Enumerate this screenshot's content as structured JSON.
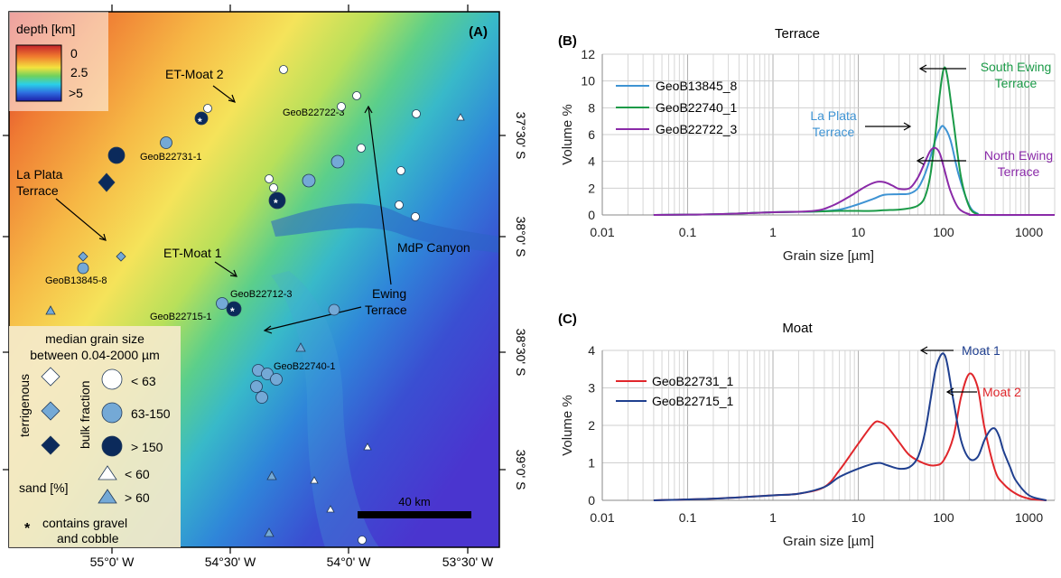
{
  "map": {
    "panel_label": "(A)",
    "colorbar": {
      "title": "depth [km]",
      "ticks": [
        "0",
        "2.5",
        ">5"
      ]
    },
    "lon_labels": [
      "55°0' W",
      "54°30' W",
      "54°0' W",
      "53°30' W"
    ],
    "lat_labels": [
      "37°30' S",
      "38°0' S",
      "38°30' S",
      "39°0' S"
    ],
    "place_labels": {
      "et_moat_2": "ET-Moat 2",
      "et_moat_1": "ET-Moat 1",
      "la_plata_1": "La Plata",
      "la_plata_2": "Terrace",
      "ewing_1": "Ewing",
      "ewing_2": "Terrace",
      "mdp_canyon": "MdP Canyon"
    },
    "sample_labels": {
      "s22722": "GeoB22722-3",
      "s22731": "GeoB22731-1",
      "s13845": "GeoB13845-8",
      "s22712": "GeoB22712-3",
      "s22715": "GeoB22715-1",
      "s22740": "GeoB22740-1"
    },
    "scale_bar": "40 km",
    "legend": {
      "title_1": "median grain size",
      "title_2": "between 0.04-2000 µm",
      "terrigenous": "terrigenous",
      "bulk_fraction": "bulk fraction",
      "lt63": "< 63",
      "r63_150": "63-150",
      "gt150": "> 150",
      "sand": "sand [%]",
      "lt60": "< 60",
      "gt60": "> 60",
      "gravel_1": "contains gravel",
      "gravel_2": "and cobble",
      "asterisk": "*"
    },
    "colors": {
      "white": "#ffffff",
      "light_blue": "#74a9d6",
      "dark_navy": "#0b2a5b"
    }
  },
  "chart_data": [
    {
      "panel_label": "(B)",
      "type": "line",
      "title": "Terrace",
      "xlabel": "Grain size [µm]",
      "ylabel": "Volume %",
      "xscale": "log",
      "xlim": [
        0.01,
        2000
      ],
      "ylim": [
        0,
        12
      ],
      "xticks": [
        "0.01",
        "0.1",
        "1",
        "10",
        "100",
        "1000"
      ],
      "yticks": [
        "0",
        "2",
        "4",
        "6",
        "8",
        "10",
        "12"
      ],
      "grid": true,
      "legend_position": "top-left",
      "series": [
        {
          "name": "GeoB13845_8",
          "color": "#3e93d3",
          "x": [
            0.04,
            0.2,
            1,
            3,
            6,
            10,
            15,
            20,
            30,
            40,
            50,
            60,
            70,
            80,
            90,
            100,
            120,
            150,
            200,
            250,
            300,
            2000
          ],
          "y": [
            0,
            0.05,
            0.2,
            0.25,
            0.4,
            0.8,
            1.2,
            1.5,
            1.55,
            1.6,
            2.0,
            3.0,
            4.3,
            5.6,
            6.4,
            6.6,
            5.6,
            3.0,
            0.7,
            0.1,
            0,
            0
          ]
        },
        {
          "name": "GeoB22740_1",
          "color": "#1a9a47",
          "x": [
            0.04,
            0.2,
            1,
            3,
            6,
            10,
            15,
            20,
            30,
            40,
            50,
            60,
            70,
            80,
            90,
            100,
            110,
            130,
            160,
            200,
            250,
            300,
            2000
          ],
          "y": [
            0,
            0.05,
            0.2,
            0.25,
            0.3,
            0.3,
            0.3,
            0.35,
            0.4,
            0.5,
            0.7,
            1.3,
            3.0,
            6.0,
            9.0,
            10.9,
            10.4,
            7.0,
            2.8,
            0.6,
            0.05,
            0,
            0
          ]
        },
        {
          "name": "GeoB22722_3",
          "color": "#8a2aa8",
          "x": [
            0.04,
            0.2,
            1,
            3,
            5,
            8,
            12,
            16,
            20,
            25,
            30,
            40,
            50,
            60,
            70,
            80,
            90,
            100,
            120,
            150,
            200,
            250,
            2000
          ],
          "y": [
            0,
            0.05,
            0.2,
            0.3,
            0.7,
            1.4,
            2.1,
            2.45,
            2.45,
            2.2,
            1.95,
            2.0,
            2.8,
            3.9,
            4.8,
            5.0,
            4.6,
            3.6,
            1.8,
            0.5,
            0.05,
            0,
            0
          ]
        }
      ],
      "annotations": [
        {
          "text_1": "South Ewing",
          "text_2": "Terrace",
          "color": "#1a9a47"
        },
        {
          "text_1": "La Plata",
          "text_2": "Terrace",
          "color": "#3e93d3"
        },
        {
          "text_1": "North Ewing",
          "text_2": "Terrace",
          "color": "#8a2aa8"
        }
      ]
    },
    {
      "panel_label": "(C)",
      "type": "line",
      "title": "Moat",
      "xlabel": "Grain size [µm]",
      "ylabel": "Volume %",
      "xscale": "log",
      "xlim": [
        0.01,
        2000
      ],
      "ylim": [
        0,
        4.5
      ],
      "xticks": [
        "0.01",
        "0.1",
        "1",
        "10",
        "100",
        "1000"
      ],
      "yticks": [
        "0",
        "1",
        "2",
        "3",
        "4"
      ],
      "grid": true,
      "legend_position": "top-left",
      "series": [
        {
          "name": "GeoB22731_1",
          "color": "#e0262b",
          "x": [
            0.04,
            0.2,
            1,
            2,
            4,
            6,
            10,
            15,
            18,
            22,
            30,
            40,
            60,
            80,
            100,
            130,
            160,
            200,
            250,
            300,
            400,
            500,
            700,
            1000,
            1600
          ],
          "y": [
            0,
            0.05,
            0.15,
            0.2,
            0.4,
            0.9,
            1.7,
            2.3,
            2.35,
            2.2,
            1.75,
            1.35,
            1.1,
            1.05,
            1.2,
            1.9,
            3.1,
            3.8,
            3.4,
            2.2,
            0.9,
            0.5,
            0.2,
            0.05,
            0
          ]
        },
        {
          "name": "GeoB22715_1",
          "color": "#1f3f8f",
          "x": [
            0.04,
            0.2,
            1,
            2,
            4,
            6,
            10,
            15,
            18,
            22,
            30,
            40,
            50,
            60,
            70,
            80,
            90,
            100,
            110,
            130,
            160,
            200,
            250,
            300,
            350,
            400,
            450,
            500,
            600,
            700,
            1000,
            1600
          ],
          "y": [
            0,
            0.05,
            0.15,
            0.2,
            0.4,
            0.7,
            0.95,
            1.1,
            1.12,
            1.05,
            0.95,
            1.0,
            1.3,
            2.0,
            3.0,
            3.9,
            4.3,
            4.4,
            4.1,
            3.0,
            1.8,
            1.25,
            1.3,
            1.8,
            2.1,
            2.15,
            1.9,
            1.5,
            1.0,
            0.6,
            0.15,
            0
          ]
        }
      ],
      "annotations": [
        {
          "text_1": "Moat 1",
          "text_2": "",
          "color": "#1f3f8f"
        },
        {
          "text_1": "Moat 2",
          "text_2": "",
          "color": "#e0262b"
        }
      ]
    }
  ]
}
